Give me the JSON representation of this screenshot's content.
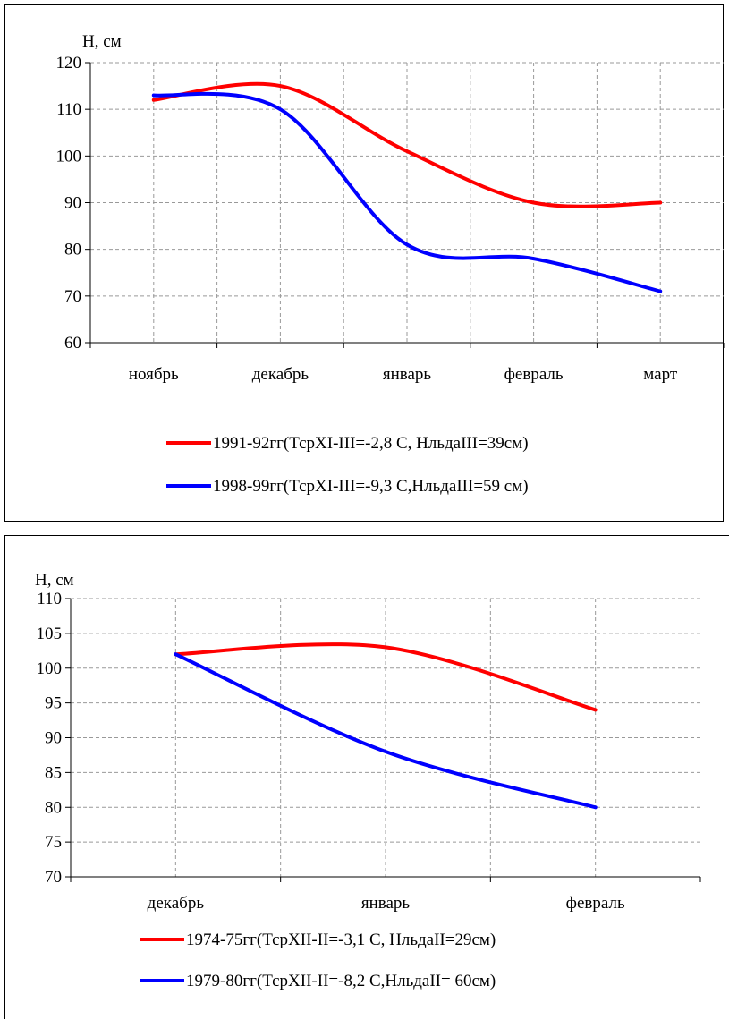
{
  "chart_data": [
    {
      "type": "line",
      "ylabel": "H, см",
      "categories": [
        "ноябрь",
        "декабрь",
        "январь",
        "февраль",
        "март"
      ],
      "yticks": [
        "60",
        "70",
        "80",
        "90",
        "100",
        "110",
        "120"
      ],
      "ylim": [
        60,
        120
      ],
      "grid": true,
      "legend_position": "bottom",
      "series": [
        {
          "name": "1991-92гг(ТсрXI-III=-2,8 С, НльдаIII=39см)",
          "color": "#ff0000",
          "values": [
            112,
            115,
            101,
            90,
            90
          ]
        },
        {
          "name": "1998-99гг(ТсрXI-III=-9,3 С,НльдаIII=59 см)",
          "color": "#0000ff",
          "values": [
            113,
            110,
            81,
            78,
            71
          ]
        }
      ]
    },
    {
      "type": "line",
      "ylabel": "H, см",
      "categories": [
        "декабрь",
        "январь",
        "февраль"
      ],
      "yticks": [
        "70",
        "75",
        "80",
        "85",
        "90",
        "95",
        "100",
        "105",
        "110"
      ],
      "ylim": [
        70,
        110
      ],
      "grid": true,
      "legend_position": "bottom",
      "series": [
        {
          "name": "1974-75гг(ТсрXII-II=-3,1 С, НльдаII=29см)",
          "color": "#ff0000",
          "values": [
            102,
            103,
            94
          ]
        },
        {
          "name": "1979-80гг(ТсрXII-II=-8,2 С,НльдаII= 60см)",
          "color": "#0000ff",
          "values": [
            102,
            88,
            80
          ]
        }
      ]
    }
  ]
}
